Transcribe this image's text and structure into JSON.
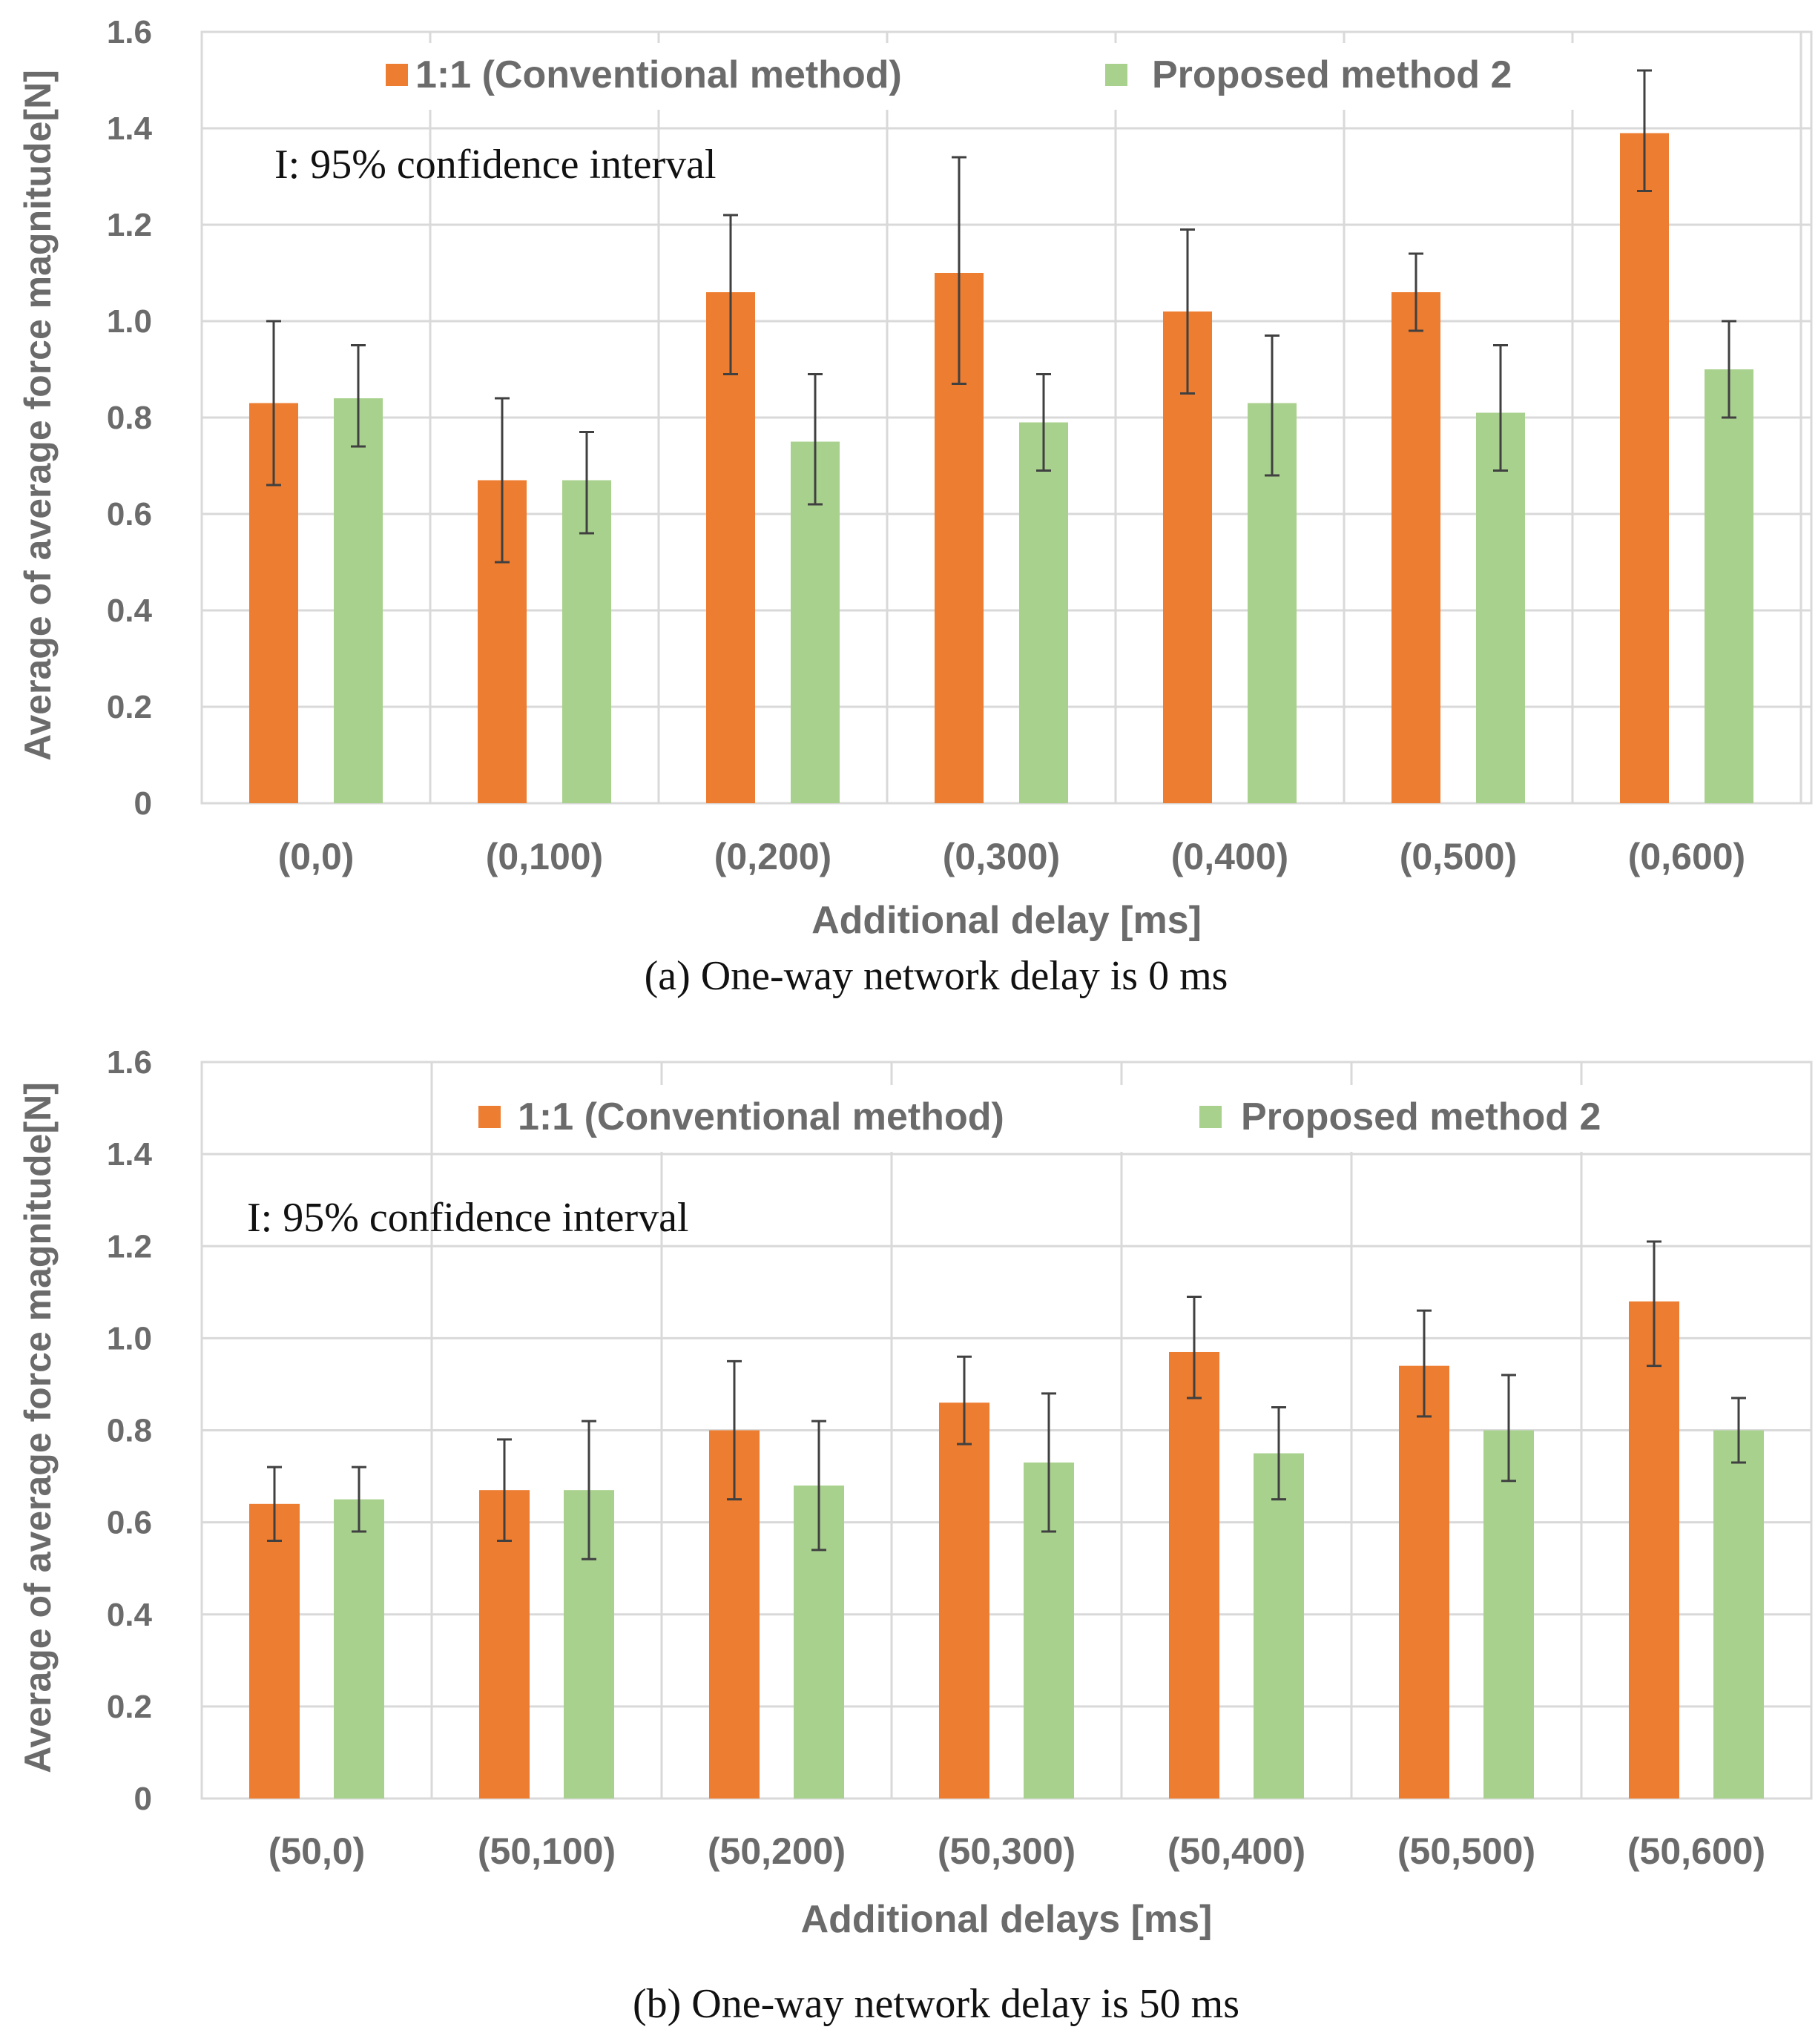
{
  "colors": {
    "conventional": "#ED7D31",
    "proposed": "#A9D18E",
    "grid": "#d9d9d9",
    "errorbar": "#404040",
    "text": "#6b6b6b"
  },
  "chart_data": [
    {
      "type": "bar",
      "caption": "(a) One-way network delay is 0 ms",
      "note": "I: 95% confidence interval",
      "xlabel": "Additional delay [ms]",
      "ylabel": "Average of average force magnitude[N]",
      "ylim": [
        0,
        1.6
      ],
      "yticks": [
        "0",
        "0.2",
        "0.4",
        "0.6",
        "0.8",
        "1.0",
        "1.2",
        "1.4",
        "1.6"
      ],
      "categories": [
        "(0,0)",
        "(0,100)",
        "(0,200)",
        "(0,300)",
        "(0,400)",
        "(0,500)",
        "(0,600)"
      ],
      "legend_position": "top",
      "grid": true,
      "series": [
        {
          "name": "1:1 (Conventional method)",
          "color_key": "conventional",
          "values": [
            0.83,
            0.67,
            1.06,
            1.1,
            1.02,
            1.06,
            1.39
          ],
          "ci_low": [
            0.66,
            0.5,
            0.89,
            0.87,
            0.85,
            0.98,
            1.27
          ],
          "ci_high": [
            1.0,
            0.84,
            1.22,
            1.34,
            1.19,
            1.14,
            1.52
          ]
        },
        {
          "name": "Proposed method 2",
          "color_key": "proposed",
          "values": [
            0.84,
            0.67,
            0.75,
            0.79,
            0.83,
            0.81,
            0.9
          ],
          "ci_low": [
            0.74,
            0.56,
            0.62,
            0.69,
            0.68,
            0.69,
            0.8
          ],
          "ci_high": [
            0.95,
            0.77,
            0.89,
            0.89,
            0.97,
            0.95,
            1.0
          ]
        }
      ]
    },
    {
      "type": "bar",
      "caption": "(b) One-way network delay is 50 ms",
      "note": "I: 95% confidence interval",
      "xlabel": "Additional delays [ms]",
      "ylabel": "Average of average force magnitude[N]",
      "ylim": [
        0,
        1.6
      ],
      "yticks": [
        "0",
        "0.2",
        "0.4",
        "0.6",
        "0.8",
        "1.0",
        "1.2",
        "1.4",
        "1.6"
      ],
      "categories": [
        "(50,0)",
        "(50,100)",
        "(50,200)",
        "(50,300)",
        "(50,400)",
        "(50,500)",
        "(50,600)"
      ],
      "legend_position": "top",
      "grid": true,
      "series": [
        {
          "name": "1:1 (Conventional method)",
          "color_key": "conventional",
          "values": [
            0.64,
            0.67,
            0.8,
            0.86,
            0.97,
            0.94,
            1.08
          ],
          "ci_low": [
            0.56,
            0.56,
            0.65,
            0.77,
            0.87,
            0.83,
            0.94
          ],
          "ci_high": [
            0.72,
            0.78,
            0.95,
            0.96,
            1.09,
            1.06,
            1.21
          ]
        },
        {
          "name": "Proposed method 2",
          "color_key": "proposed",
          "values": [
            0.65,
            0.67,
            0.68,
            0.73,
            0.75,
            0.8,
            0.8
          ],
          "ci_low": [
            0.58,
            0.52,
            0.54,
            0.58,
            0.65,
            0.69,
            0.73
          ],
          "ci_high": [
            0.72,
            0.82,
            0.82,
            0.88,
            0.85,
            0.92,
            0.87
          ]
        }
      ]
    }
  ]
}
